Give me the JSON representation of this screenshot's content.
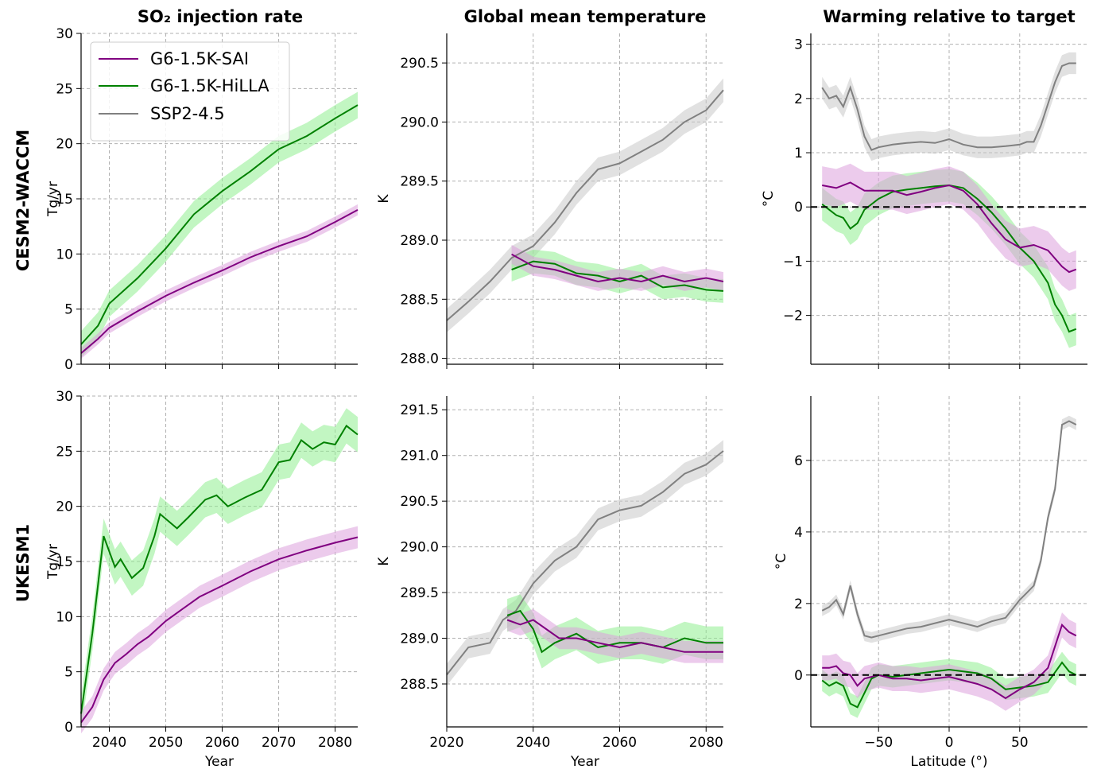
{
  "figure": {
    "column_titles": [
      "SO₂ injection rate",
      "Global mean temperature",
      "Warming relative to target"
    ],
    "row_labels": [
      "CESM2-WACCM",
      "UKESM1"
    ],
    "x_label_year": "Year",
    "x_label_lat": "Latitude (°)",
    "y_label_rate": "Tg/yr",
    "y_label_temp": "K",
    "y_label_warm": "°C"
  },
  "legend": [
    {
      "name": "G6-1.5K-SAI",
      "color": "#800080"
    },
    {
      "name": "G6-1.5K-HiLLA",
      "color": "#008000"
    },
    {
      "name": "SSP2-4.5",
      "color": "#808080"
    }
  ],
  "colors": {
    "sai": "#800080",
    "sai_fill": "#dda0dd",
    "hilla": "#008000",
    "hilla_fill": "#90ee90",
    "ssp": "#808080",
    "ssp_fill": "#c8c8c8",
    "target_line": "#000000"
  },
  "chart_data": [
    {
      "type": "line",
      "id": "cesm-rate",
      "title": "SO₂ injection rate",
      "row_label": "CESM2-WACCM",
      "xlabel": "",
      "ylabel": "Tg/yr",
      "xlim": [
        2035,
        2084
      ],
      "ylim": [
        0,
        30
      ],
      "xticks": [
        2040,
        2050,
        2060,
        2070,
        2080
      ],
      "yticks": [
        0,
        5,
        10,
        15,
        20,
        25,
        30
      ],
      "show_xticklabels": false,
      "legend": true,
      "series": [
        {
          "key": "sai",
          "name": "G6-1.5K-SAI",
          "x": [
            2035,
            2038,
            2040,
            2045,
            2050,
            2055,
            2060,
            2065,
            2070,
            2075,
            2080,
            2084
          ],
          "y": [
            1.0,
            2.3,
            3.3,
            4.8,
            6.2,
            7.4,
            8.5,
            9.7,
            10.7,
            11.6,
            12.9,
            14.0
          ],
          "spread": 0.5
        },
        {
          "key": "hilla",
          "name": "G6-1.5K-HiLLA",
          "x": [
            2035,
            2038,
            2040,
            2045,
            2050,
            2055,
            2060,
            2065,
            2070,
            2075,
            2080,
            2084
          ],
          "y": [
            1.8,
            3.5,
            5.5,
            7.8,
            10.5,
            13.6,
            15.7,
            17.5,
            19.5,
            20.7,
            22.3,
            23.5
          ],
          "spread": 1.2
        }
      ]
    },
    {
      "type": "line",
      "id": "cesm-temp",
      "title": "Global mean temperature",
      "row_label": "CESM2-WACCM",
      "xlabel": "",
      "ylabel": "K",
      "xlim": [
        2020,
        2084
      ],
      "ylim": [
        287.95,
        290.75
      ],
      "xticks": [
        2020,
        2040,
        2060,
        2080
      ],
      "yticks": [
        288.0,
        288.5,
        289.0,
        289.5,
        290.0,
        290.5
      ],
      "ytick_labels": [
        "288.0",
        "288.5",
        "289.0",
        "289.5",
        "290.0",
        "290.5"
      ],
      "show_xticklabels": false,
      "series": [
        {
          "key": "ssp",
          "name": "SSP2-4.5",
          "x": [
            2020,
            2025,
            2030,
            2035,
            2040,
            2045,
            2050,
            2055,
            2060,
            2065,
            2070,
            2075,
            2080,
            2084
          ],
          "y": [
            288.32,
            288.48,
            288.65,
            288.85,
            288.95,
            289.15,
            289.4,
            289.6,
            289.65,
            289.75,
            289.85,
            290.0,
            290.1,
            290.27
          ],
          "spread": 0.1
        },
        {
          "key": "sai",
          "name": "G6-1.5K-SAI",
          "x": [
            2035,
            2040,
            2045,
            2050,
            2055,
            2060,
            2065,
            2070,
            2075,
            2080,
            2084
          ],
          "y": [
            288.88,
            288.78,
            288.75,
            288.7,
            288.65,
            288.68,
            288.65,
            288.7,
            288.65,
            288.68,
            288.65
          ],
          "spread": 0.08
        },
        {
          "key": "hilla",
          "name": "G6-1.5K-HiLLA",
          "x": [
            2035,
            2040,
            2045,
            2050,
            2055,
            2060,
            2065,
            2070,
            2075,
            2080,
            2084
          ],
          "y": [
            288.75,
            288.82,
            288.8,
            288.72,
            288.7,
            288.65,
            288.7,
            288.6,
            288.62,
            288.58,
            288.57
          ],
          "spread": 0.1
        }
      ]
    },
    {
      "type": "line",
      "id": "cesm-warm",
      "title": "Warming relative to target",
      "row_label": "CESM2-WACCM",
      "xlabel": "",
      "ylabel": "°C",
      "xlim": [
        -98,
        98
      ],
      "ylim": [
        -2.9,
        3.2
      ],
      "xticks": [
        -50,
        0,
        50
      ],
      "yticks": [
        -2,
        -1,
        0,
        1,
        2,
        3
      ],
      "ytick_labels": [
        "−2",
        "−1",
        "0",
        "1",
        "2",
        "3"
      ],
      "xtick_grid": [
        -50,
        0,
        50
      ],
      "show_xticklabels": false,
      "zero_line": true,
      "series": [
        {
          "key": "ssp",
          "name": "SSP2-4.5",
          "x": [
            -90,
            -85,
            -80,
            -75,
            -70,
            -65,
            -60,
            -55,
            -50,
            -40,
            -30,
            -20,
            -10,
            0,
            10,
            20,
            30,
            40,
            50,
            55,
            60,
            65,
            70,
            75,
            80,
            85,
            90
          ],
          "y": [
            2.2,
            2.0,
            2.05,
            1.85,
            2.2,
            1.8,
            1.3,
            1.05,
            1.1,
            1.15,
            1.18,
            1.2,
            1.18,
            1.25,
            1.15,
            1.1,
            1.1,
            1.12,
            1.15,
            1.2,
            1.2,
            1.5,
            1.9,
            2.3,
            2.6,
            2.65,
            2.65
          ],
          "spread": 0.2
        },
        {
          "key": "sai",
          "name": "G6-1.5K-SAI",
          "x": [
            -90,
            -80,
            -70,
            -60,
            -50,
            -40,
            -30,
            -20,
            -10,
            0,
            10,
            20,
            30,
            40,
            50,
            60,
            70,
            80,
            85,
            90
          ],
          "y": [
            0.4,
            0.35,
            0.45,
            0.3,
            0.3,
            0.3,
            0.22,
            0.28,
            0.35,
            0.4,
            0.3,
            0.05,
            -0.3,
            -0.6,
            -0.75,
            -0.7,
            -0.8,
            -1.1,
            -1.2,
            -1.15
          ],
          "spread": 0.35
        },
        {
          "key": "hilla",
          "name": "G6-1.5K-HiLLA",
          "x": [
            -90,
            -80,
            -75,
            -70,
            -65,
            -60,
            -50,
            -40,
            -30,
            -20,
            -10,
            0,
            10,
            20,
            30,
            40,
            50,
            60,
            70,
            75,
            80,
            85,
            90
          ],
          "y": [
            0.05,
            -0.15,
            -0.2,
            -0.4,
            -0.3,
            -0.05,
            0.15,
            0.28,
            0.32,
            0.35,
            0.38,
            0.4,
            0.35,
            0.15,
            -0.1,
            -0.4,
            -0.75,
            -1.0,
            -1.4,
            -1.8,
            -2.0,
            -2.3,
            -2.25
          ],
          "spread": 0.3
        }
      ]
    },
    {
      "type": "line",
      "id": "ukesm-rate",
      "title": "",
      "row_label": "UKESM1",
      "xlabel": "Year",
      "ylabel": "Tg/yr",
      "xlim": [
        2035,
        2084
      ],
      "ylim": [
        0,
        30
      ],
      "xticks": [
        2040,
        2050,
        2060,
        2070,
        2080
      ],
      "yticks": [
        0,
        5,
        10,
        15,
        20,
        25,
        30
      ],
      "show_xticklabels": true,
      "series": [
        {
          "key": "sai",
          "name": "G6-1.5K-SAI",
          "x": [
            2035,
            2037,
            2039,
            2041,
            2043,
            2045,
            2047,
            2050,
            2053,
            2056,
            2060,
            2065,
            2070,
            2075,
            2080,
            2084
          ],
          "y": [
            0.4,
            1.8,
            4.3,
            5.8,
            6.6,
            7.5,
            8.2,
            9.6,
            10.7,
            11.8,
            12.8,
            14.1,
            15.2,
            16.0,
            16.7,
            17.2
          ],
          "spread": 1.0
        },
        {
          "key": "hilla",
          "name": "G6-1.5K-HiLLA",
          "x": [
            2035,
            2037,
            2039,
            2041,
            2042,
            2044,
            2046,
            2048,
            2049,
            2052,
            2054,
            2057,
            2059,
            2061,
            2064,
            2067,
            2070,
            2072,
            2074,
            2076,
            2078,
            2080,
            2082,
            2084
          ],
          "y": [
            1.2,
            8.5,
            17.3,
            14.5,
            15.2,
            13.5,
            14.4,
            17.3,
            19.3,
            18.0,
            19.0,
            20.6,
            21.0,
            20.0,
            20.8,
            21.5,
            24.0,
            24.2,
            26.0,
            25.2,
            25.8,
            25.6,
            27.3,
            26.5
          ],
          "spread": 1.6
        }
      ]
    },
    {
      "type": "line",
      "id": "ukesm-temp",
      "title": "",
      "row_label": "UKESM1",
      "xlabel": "Year",
      "ylabel": "K",
      "xlim": [
        2020,
        2084
      ],
      "ylim": [
        288.03,
        291.65
      ],
      "xticks": [
        2020,
        2040,
        2060,
        2080
      ],
      "yticks": [
        288.5,
        289.0,
        289.5,
        290.0,
        290.5,
        291.0,
        291.5
      ],
      "ytick_labels": [
        "288.5",
        "289.0",
        "289.5",
        "290.0",
        "290.5",
        "291.0",
        "291.5"
      ],
      "show_xticklabels": true,
      "series": [
        {
          "key": "ssp",
          "name": "SSP2-4.5",
          "x": [
            2020,
            2025,
            2030,
            2033,
            2036,
            2040,
            2045,
            2050,
            2055,
            2060,
            2065,
            2070,
            2075,
            2080,
            2084
          ],
          "y": [
            288.6,
            288.9,
            288.95,
            289.2,
            289.3,
            289.6,
            289.85,
            290.0,
            290.3,
            290.4,
            290.45,
            290.6,
            290.8,
            290.9,
            291.05
          ],
          "spread": 0.12
        },
        {
          "key": "sai",
          "name": "G6-1.5K-SAI",
          "x": [
            2034,
            2037,
            2040,
            2043,
            2046,
            2050,
            2055,
            2060,
            2065,
            2070,
            2075,
            2080,
            2084
          ],
          "y": [
            289.2,
            289.15,
            289.2,
            289.1,
            289.0,
            289.0,
            288.95,
            288.9,
            288.95,
            288.9,
            288.85,
            288.85,
            288.85
          ],
          "spread": 0.12
        },
        {
          "key": "hilla",
          "name": "G6-1.5K-HiLLA",
          "x": [
            2034,
            2037,
            2040,
            2042,
            2045,
            2050,
            2055,
            2060,
            2065,
            2070,
            2075,
            2080,
            2084
          ],
          "y": [
            289.25,
            289.3,
            289.1,
            288.85,
            288.95,
            289.05,
            288.9,
            288.95,
            288.95,
            288.9,
            289.0,
            288.95,
            288.95
          ],
          "spread": 0.18
        }
      ]
    },
    {
      "type": "line",
      "id": "ukesm-warm",
      "title": "",
      "row_label": "UKESM1",
      "xlabel": "Latitude (°)",
      "ylabel": "°C",
      "xlim": [
        -98,
        98
      ],
      "ylim": [
        -1.45,
        7.8
      ],
      "xticks": [
        -50,
        0,
        50
      ],
      "xtick_labels": [
        "−50",
        "0",
        "50"
      ],
      "yticks": [
        0,
        2,
        4,
        6
      ],
      "ytick_labels": [
        "0",
        "2",
        "4",
        "6"
      ],
      "show_xticklabels": true,
      "zero_line": true,
      "series": [
        {
          "key": "ssp",
          "name": "SSP2-4.5",
          "x": [
            -90,
            -85,
            -80,
            -75,
            -70,
            -65,
            -60,
            -55,
            -50,
            -40,
            -30,
            -20,
            -10,
            0,
            10,
            20,
            30,
            40,
            50,
            55,
            60,
            65,
            70,
            75,
            80,
            85,
            90
          ],
          "y": [
            1.8,
            1.9,
            2.1,
            1.7,
            2.5,
            1.7,
            1.1,
            1.05,
            1.1,
            1.2,
            1.3,
            1.35,
            1.45,
            1.55,
            1.45,
            1.35,
            1.5,
            1.6,
            2.1,
            2.3,
            2.5,
            3.2,
            4.4,
            5.2,
            7.0,
            7.1,
            7.0
          ],
          "spread": 0.15
        },
        {
          "key": "sai",
          "name": "G6-1.5K-SAI",
          "x": [
            -90,
            -85,
            -80,
            -75,
            -70,
            -65,
            -60,
            -50,
            -40,
            -30,
            -20,
            -10,
            0,
            10,
            20,
            30,
            40,
            50,
            60,
            70,
            80,
            85,
            90
          ],
          "y": [
            0.2,
            0.2,
            0.25,
            0.05,
            0.0,
            -0.3,
            -0.1,
            0.0,
            -0.1,
            -0.1,
            -0.15,
            -0.1,
            -0.05,
            -0.15,
            -0.25,
            -0.4,
            -0.65,
            -0.4,
            -0.2,
            0.2,
            1.4,
            1.2,
            1.1
          ],
          "spread": 0.35
        },
        {
          "key": "hilla",
          "name": "G6-1.5K-HiLLA",
          "x": [
            -90,
            -85,
            -80,
            -75,
            -70,
            -65,
            -60,
            -55,
            -50,
            -40,
            -30,
            -20,
            -10,
            0,
            10,
            20,
            30,
            40,
            50,
            60,
            70,
            80,
            85,
            90
          ],
          "y": [
            -0.15,
            -0.3,
            -0.2,
            -0.3,
            -0.8,
            -0.9,
            -0.5,
            -0.1,
            0.0,
            -0.05,
            0.0,
            0.05,
            0.1,
            0.15,
            0.1,
            0.05,
            -0.1,
            -0.4,
            -0.35,
            -0.3,
            -0.2,
            0.35,
            0.1,
            0.0
          ],
          "spread": 0.3
        }
      ]
    }
  ]
}
